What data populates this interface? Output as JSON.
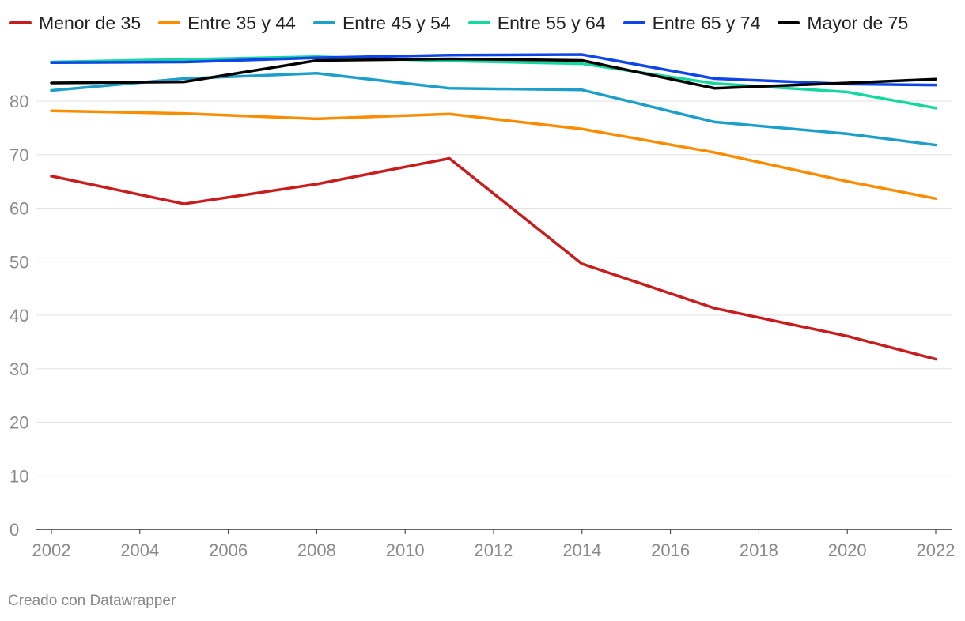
{
  "chart_data": {
    "type": "line",
    "title": "",
    "xlabel": "",
    "ylabel": "",
    "x_ticks": [
      "2002",
      "2004",
      "2006",
      "2008",
      "2010",
      "2012",
      "2014",
      "2016",
      "2018",
      "2020",
      "2022"
    ],
    "y_ticks": [
      "0",
      "10",
      "20",
      "30",
      "40",
      "50",
      "60",
      "70",
      "80"
    ],
    "xlim": [
      2002,
      2022
    ],
    "ylim": [
      0,
      90
    ],
    "grid": true,
    "legend_position": "top-left",
    "series": [
      {
        "name": "Menor de 35",
        "color": "#c71e1d",
        "x": [
          2002,
          2005,
          2008,
          2011,
          2014,
          2017,
          2020,
          2022
        ],
        "values": [
          66.0,
          60.8,
          64.5,
          69.3,
          49.6,
          41.3,
          36.1,
          31.8
        ]
      },
      {
        "name": "Entre 35 y 44",
        "color": "#fa8c00",
        "x": [
          2002,
          2005,
          2008,
          2011,
          2014,
          2017,
          2020,
          2022
        ],
        "values": [
          78.2,
          77.7,
          76.7,
          77.6,
          74.8,
          70.4,
          65.0,
          61.8
        ]
      },
      {
        "name": "Entre 45 y 54",
        "color": "#1d9fc9",
        "x": [
          2002,
          2005,
          2008,
          2011,
          2014,
          2017,
          2020,
          2022
        ],
        "values": [
          82.0,
          84.2,
          85.2,
          82.4,
          82.1,
          76.1,
          73.9,
          71.8
        ]
      },
      {
        "name": "Entre 55 y 64",
        "color": "#15d8a0",
        "x": [
          2002,
          2005,
          2008,
          2011,
          2014,
          2017,
          2020,
          2022
        ],
        "values": [
          87.3,
          87.8,
          88.3,
          87.5,
          87.0,
          83.3,
          81.7,
          78.7
        ]
      },
      {
        "name": "Entre 65 y 74",
        "color": "#0d45ea",
        "x": [
          2002,
          2005,
          2008,
          2011,
          2014,
          2017,
          2020,
          2022
        ],
        "values": [
          87.2,
          87.3,
          88.1,
          88.6,
          88.7,
          84.2,
          83.2,
          83.0
        ]
      },
      {
        "name": "Mayor de 75",
        "color": "#000000",
        "x": [
          2002,
          2005,
          2008,
          2011,
          2014,
          2017,
          2020,
          2022
        ],
        "values": [
          83.4,
          83.6,
          87.6,
          87.9,
          87.6,
          82.4,
          83.4,
          84.1
        ]
      }
    ]
  },
  "footer": {
    "credit": "Creado con Datawrapper"
  }
}
